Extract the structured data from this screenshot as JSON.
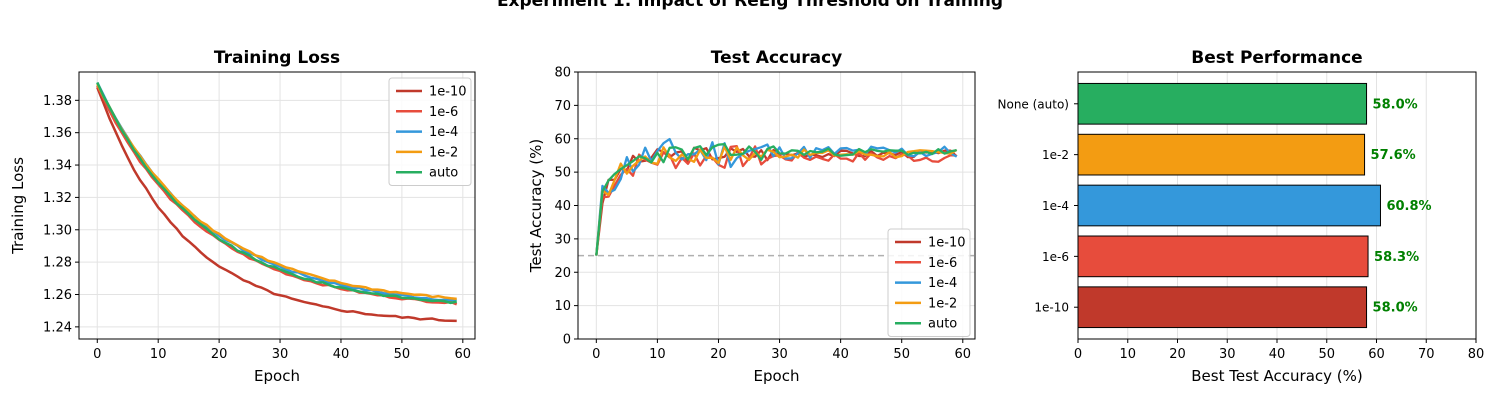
{
  "figure": {
    "title": "Experiment 1: Impact of ReEig Threshold on Training"
  },
  "colors": {
    "1e-10": "#c0392b",
    "1e-6": "#e74c3c",
    "1e-4": "#3498db",
    "1e-2": "#f39c12",
    "auto": "#27ae60",
    "reference": "#b0b0b0"
  },
  "chart_data": [
    {
      "id": "loss",
      "type": "line",
      "title": "Training Loss",
      "xlabel": "Epoch",
      "ylabel": "Training Loss",
      "xlim": [
        -3,
        62
      ],
      "ylim": [
        1.2325,
        1.3975
      ],
      "xticks": [
        0,
        10,
        20,
        30,
        40,
        50,
        60
      ],
      "yticks": [
        1.24,
        1.26,
        1.28,
        1.3,
        1.32,
        1.34,
        1.36,
        1.38
      ],
      "ytick_labels": [
        "1.24",
        "1.26",
        "1.28",
        "1.30",
        "1.32",
        "1.34",
        "1.36",
        "1.38"
      ],
      "grid": true,
      "legend": "top-right",
      "series": [
        {
          "name": "1e-10",
          "color_key": "1e-10",
          "y0": 1.388,
          "y_end": 1.2415,
          "k": 0.07
        },
        {
          "name": "1e-6",
          "color_key": "1e-6",
          "y0": 1.389,
          "y_end": 1.25,
          "k": 0.058
        },
        {
          "name": "1e-4",
          "color_key": "1e-4",
          "y0": 1.391,
          "y_end": 1.251,
          "k": 0.056
        },
        {
          "name": "1e-2",
          "color_key": "1e-2",
          "y0": 1.39,
          "y_end": 1.2525,
          "k": 0.056
        },
        {
          "name": "auto",
          "color_key": "auto",
          "y0": 1.391,
          "y_end": 1.2505,
          "k": 0.058
        }
      ]
    },
    {
      "id": "acc",
      "type": "line",
      "title": "Test Accuracy",
      "xlabel": "Epoch",
      "ylabel": "Test Accuracy (%)",
      "xlim": [
        -3,
        62
      ],
      "ylim": [
        0,
        80
      ],
      "xticks": [
        0,
        10,
        20,
        30,
        40,
        50,
        60
      ],
      "yticks": [
        0,
        10,
        20,
        30,
        40,
        50,
        60,
        70,
        80
      ],
      "grid": true,
      "legend": "bottom-right",
      "reference_line": 25,
      "series": [
        {
          "name": "1e-10",
          "color_key": "1e-10",
          "start": 25,
          "plateau": 55.5,
          "amp": 1.5,
          "seed": 3
        },
        {
          "name": "1e-6",
          "color_key": "1e-6",
          "start": 25,
          "plateau": 54.5,
          "amp": 2.2,
          "seed": 7
        },
        {
          "name": "1e-4",
          "color_key": "1e-4",
          "start": 25,
          "plateau": 56.0,
          "amp": 3.0,
          "seed": 11
        },
        {
          "name": "1e-2",
          "color_key": "1e-2",
          "start": 25,
          "plateau": 55.5,
          "amp": 1.8,
          "seed": 17
        },
        {
          "name": "auto",
          "color_key": "auto",
          "start": 25,
          "plateau": 56.0,
          "amp": 1.6,
          "seed": 23
        }
      ]
    },
    {
      "id": "best",
      "type": "bar",
      "orientation": "horizontal",
      "title": "Best Performance",
      "xlabel": "Best Test Accuracy (%)",
      "xlim": [
        0,
        80
      ],
      "xticks": [
        0,
        10,
        20,
        30,
        40,
        50,
        60,
        70,
        80
      ],
      "grid": true,
      "categories": [
        "None (auto)",
        "1e-2",
        "1e-4",
        "1e-6",
        "1e-10"
      ],
      "color_keys": [
        "auto",
        "1e-2",
        "1e-4",
        "1e-6",
        "1e-10"
      ],
      "values": [
        58.0,
        57.6,
        60.8,
        58.3,
        58.0
      ],
      "value_labels": [
        "58.0%",
        "57.6%",
        "60.8%",
        "58.3%",
        "58.0%"
      ]
    }
  ]
}
